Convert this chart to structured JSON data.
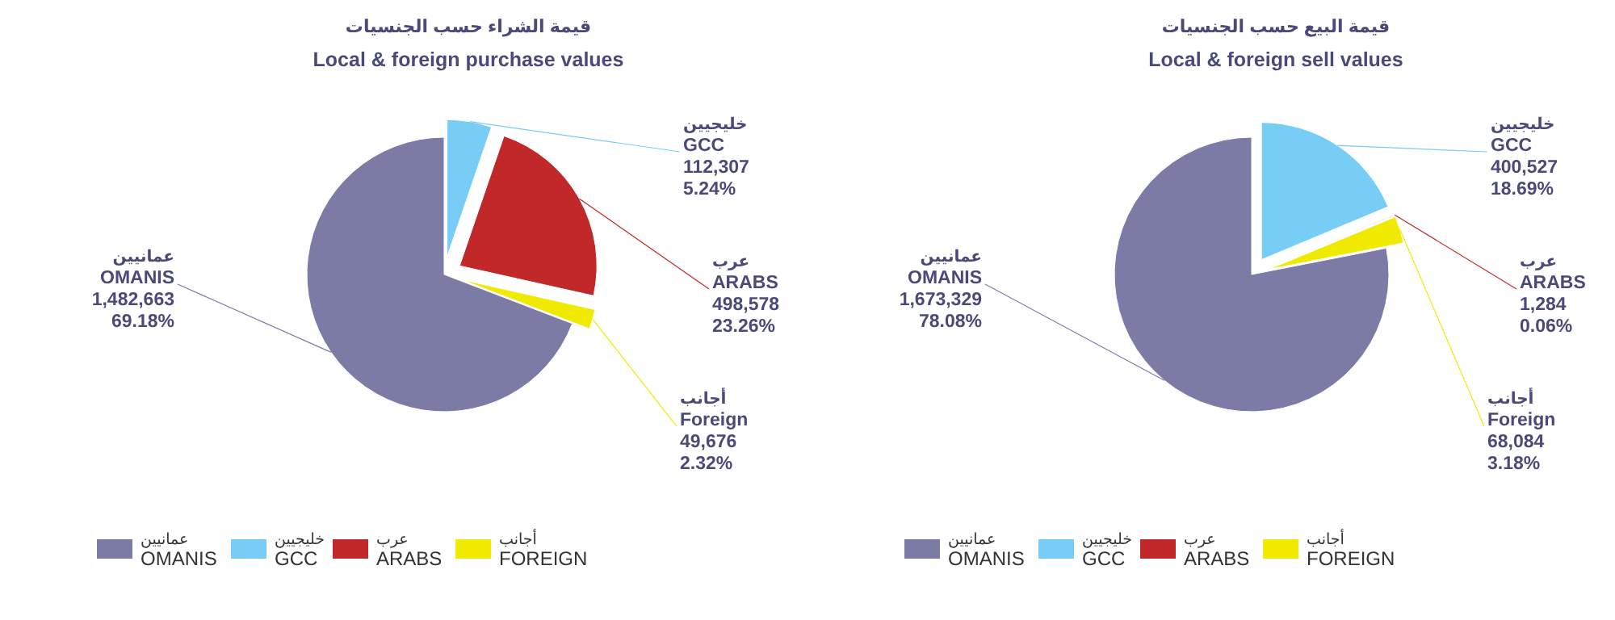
{
  "chart_data": [
    {
      "type": "pie",
      "title": "قيمة الشراء حسب الجنسيات",
      "subtitle": "Local & foreign purchase values",
      "categories": [
        "عمانيين\nOMANIS",
        "خليجيين\nGCC",
        "عرب\nARABS",
        "أجانب\nFOREIGN"
      ],
      "values": [
        1482663,
        112307,
        498578,
        49676
      ],
      "colors": [
        "#7b7ba5",
        "#77cdf5",
        "#c0282a",
        "#f0ea00"
      ],
      "value_labels": [
        "عمانيين\nOMANIS\n1,482,663\n69.18%",
        "خليجيين\nGCC\n112,307\n5.24%",
        "عرب\nARABS\n498,578\n23.26%",
        "أجانب\nForeign\n49,676\n2.32%"
      ],
      "legend": "bottom"
    },
    {
      "type": "pie",
      "title": "قيمة البيع حسب الجنسيات",
      "subtitle": "Local & foreign sell values",
      "categories": [
        "عمانيين\nOMANIS",
        "خليجيين\nGCC",
        "عرب\nARABS",
        "أجانب\nFOREIGN"
      ],
      "values": [
        1673329,
        400527,
        1284,
        68084
      ],
      "colors": [
        "#7b7ba5",
        "#77cdf5",
        "#c0282a",
        "#f0ea00"
      ],
      "value_labels": [
        "عمانيين\nOMANIS\n1,673,329\n78.08%",
        "خليجيين\nGCC\n400,527\n18.69%",
        "عرب\nARABS\n1,284\n0.06%",
        "أجانب\nForeign\n68,084\n3.18%"
      ],
      "legend": "bottom"
    }
  ]
}
